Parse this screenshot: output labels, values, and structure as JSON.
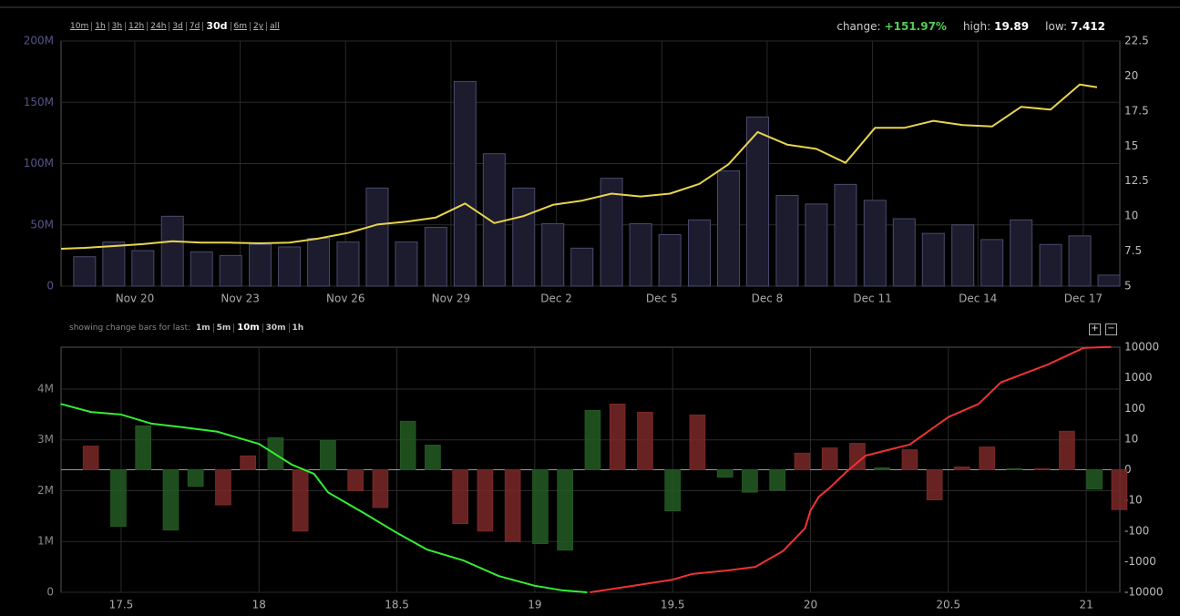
{
  "toolbar": {
    "ranges": [
      "10m",
      "1h",
      "3h",
      "12h",
      "24h",
      "3d",
      "7d",
      "30d",
      "6m",
      "2y",
      "all"
    ],
    "active": "30d"
  },
  "stats": {
    "change_label": "change:",
    "change": "+151.97%",
    "high_label": "high:",
    "high": "19.89",
    "low_label": "low:",
    "low": "7.412"
  },
  "change_bars": {
    "label": "showing change bars for last:",
    "options": [
      "1m",
      "5m",
      "10m",
      "30m",
      "1h"
    ],
    "active": "10m"
  },
  "zoom_buttons": [
    "+",
    "−"
  ],
  "chart_data": [
    {
      "type": "combo",
      "xlim": [
        17.9,
        48.04
      ],
      "xticks": [
        {
          "value": 20,
          "label": "Nov 20"
        },
        {
          "value": 23,
          "label": "Nov 23"
        },
        {
          "value": 26,
          "label": "Nov 26"
        },
        {
          "value": 29,
          "label": "Nov 29"
        },
        {
          "value": 32,
          "label": "Dec 2"
        },
        {
          "value": 35,
          "label": "Dec 5"
        },
        {
          "value": 38,
          "label": "Dec 8"
        },
        {
          "value": 41,
          "label": "Dec 11"
        },
        {
          "value": 44,
          "label": "Dec 14"
        },
        {
          "value": 47,
          "label": "Dec 17"
        }
      ],
      "ylim": [
        0,
        200000000
      ],
      "yticks": [
        {
          "value": 0,
          "label": "0"
        },
        {
          "value": 50000000,
          "label": "50M"
        },
        {
          "value": 100000000,
          "label": "100M"
        },
        {
          "value": 150000000,
          "label": "150M"
        },
        {
          "value": 200000000,
          "label": "200M"
        }
      ],
      "y2lim": [
        5,
        22.5
      ],
      "y2ticks": [
        5,
        7.5,
        10,
        12.5,
        15,
        17.5,
        20,
        22.5
      ],
      "grid": true,
      "series": [
        {
          "type": "bar",
          "color": "#1c1c2e",
          "edge": "#4a4a6e",
          "x": [
            18.57,
            19.4,
            20.23,
            21.07,
            21.9,
            22.73,
            23.57,
            24.4,
            25.23,
            26.07,
            26.9,
            27.73,
            28.57,
            29.4,
            30.23,
            31.07,
            31.9,
            32.73,
            33.57,
            34.4,
            35.23,
            36.07,
            36.9,
            37.73,
            38.57,
            39.4,
            40.23,
            41.07,
            41.9,
            42.73,
            43.57,
            44.4,
            45.23,
            46.07,
            46.9,
            47.73
          ],
          "values": [
            24000000,
            36000000,
            29000000,
            57000000,
            28000000,
            25000000,
            34000000,
            32000000,
            39000000,
            36000000,
            80000000,
            36000000,
            48000000,
            167000000,
            108000000,
            80000000,
            51000000,
            31000000,
            88000000,
            51000000,
            42000000,
            54000000,
            94000000,
            138000000,
            74000000,
            67000000,
            83000000,
            70000000,
            55000000,
            43000000,
            50000000,
            38000000,
            54000000,
            34000000,
            41000000,
            9000000
          ]
        },
        {
          "type": "line",
          "axis": "y2",
          "color": "#e8d44d",
          "x": [
            17.9,
            18.57,
            19.4,
            20.23,
            21.07,
            21.9,
            22.73,
            23.57,
            24.4,
            25.23,
            26.07,
            26.9,
            27.73,
            28.57,
            29.4,
            30.23,
            31.07,
            31.9,
            32.73,
            33.57,
            34.4,
            35.23,
            36.07,
            36.9,
            37.73,
            38.57,
            39.4,
            40.23,
            41.07,
            41.9,
            42.73,
            43.57,
            44.4,
            45.23,
            46.07,
            46.9,
            47.39
          ],
          "values": [
            7.67,
            7.73,
            7.86,
            8.0,
            8.2,
            8.1,
            8.1,
            8.06,
            8.1,
            8.4,
            8.8,
            9.4,
            9.6,
            9.9,
            10.9,
            9.5,
            10.0,
            10.8,
            11.1,
            11.6,
            11.4,
            11.6,
            12.3,
            13.7,
            16.0,
            15.1,
            14.8,
            13.8,
            16.3,
            16.3,
            16.8,
            16.5,
            16.4,
            17.8,
            17.6,
            19.4,
            19.2
          ]
        }
      ]
    },
    {
      "type": "combo",
      "xlim": [
        17.282,
        21.122
      ],
      "xticks": [
        17.5,
        18,
        18.5,
        19,
        19.5,
        20,
        20.5,
        21
      ],
      "ylim": [
        0,
        4825000
      ],
      "yticks": [
        0,
        {
          "value": 1000000,
          "label": "1M"
        },
        {
          "value": 2000000,
          "label": "2M"
        },
        {
          "value": 3000000,
          "label": "3M"
        },
        {
          "value": 4000000,
          "label": "4M"
        }
      ],
      "y2lim": [
        -10000,
        10000
      ],
      "y2ticks": [
        10000,
        1000,
        100,
        10,
        0,
        -10,
        -100,
        -1000,
        -10000
      ],
      "y2scale": "symlog",
      "grid": true,
      "series": [
        {
          "type": "bar",
          "axis": "y2",
          "x": [
            17.39,
            17.49,
            17.58,
            17.68,
            17.77,
            17.87,
            17.96,
            18.06,
            18.15,
            18.25,
            18.35,
            18.44,
            18.54,
            18.63,
            18.73,
            18.82,
            18.92,
            19.02,
            19.11,
            19.21,
            19.3,
            19.4,
            19.5,
            19.59,
            19.69,
            19.78,
            19.88,
            19.97,
            20.07,
            20.17,
            20.26,
            20.36,
            20.45,
            20.55,
            20.64,
            20.74,
            20.84,
            20.93,
            21.03,
            21.12
          ],
          "values": [
            7.7,
            -70,
            27,
            -92,
            -5.4,
            -14,
            4.5,
            11,
            -100,
            9.5,
            -6.8,
            -17,
            38,
            8,
            -57,
            -100,
            -224,
            -257,
            -417,
            86,
            139,
            75,
            -22,
            61,
            -2.4,
            -7.3,
            -6.7,
            5.4,
            7.1,
            8.6,
            0.6,
            6.5,
            -9.8,
            0.9,
            7.4,
            0.3,
            0.3,
            18,
            -6.3,
            -20
          ],
          "colors": [
            "#7a2828",
            "#235a23",
            "#235a23",
            "#235a23",
            "#235a23",
            "#7a2828",
            "#7a2828",
            "#235a23",
            "#7a2828",
            "#235a23",
            "#7a2828",
            "#7a2828",
            "#235a23",
            "#235a23",
            "#7a2828",
            "#7a2828",
            "#7a2828",
            "#235a23",
            "#235a23",
            "#235a23",
            "#7a2828",
            "#7a2828",
            "#235a23",
            "#7a2828",
            "#235a23",
            "#235a23",
            "#235a23",
            "#7a2828",
            "#7a2828",
            "#7a2828",
            "#235a23",
            "#7a2828",
            "#7a2828",
            "#7a2828",
            "#7a2828",
            "#235a23",
            "#7a2828",
            "#7a2828",
            "#235a23",
            "#7a2828"
          ]
        },
        {
          "type": "line",
          "color": "#33ee33",
          "x": [
            17.28,
            17.39,
            17.5,
            17.61,
            17.72,
            17.85,
            18.0,
            18.12,
            18.2,
            18.25,
            18.38,
            18.5,
            18.61,
            18.74,
            18.87,
            19.0,
            19.1,
            19.19
          ],
          "values": [
            3710000,
            3550000,
            3500000,
            3320000,
            3250000,
            3160000,
            2920000,
            2510000,
            2330000,
            1970000,
            1560000,
            1170000,
            840000,
            630000,
            320000,
            130000,
            40000,
            0
          ]
        },
        {
          "type": "line",
          "color": "#ee3333",
          "x": [
            19.2,
            19.31,
            19.5,
            19.57,
            19.7,
            19.8,
            19.9,
            19.98,
            20.0,
            20.03,
            20.07,
            20.13,
            20.2,
            20.36,
            20.5,
            20.61,
            20.69,
            20.86,
            20.99,
            21.09
          ],
          "values": [
            0,
            90000,
            250000,
            360000,
            430000,
            500000,
            810000,
            1260000,
            1610000,
            1880000,
            2060000,
            2370000,
            2690000,
            2910000,
            3450000,
            3710000,
            4130000,
            4480000,
            4810000,
            4830000
          ]
        }
      ]
    }
  ]
}
